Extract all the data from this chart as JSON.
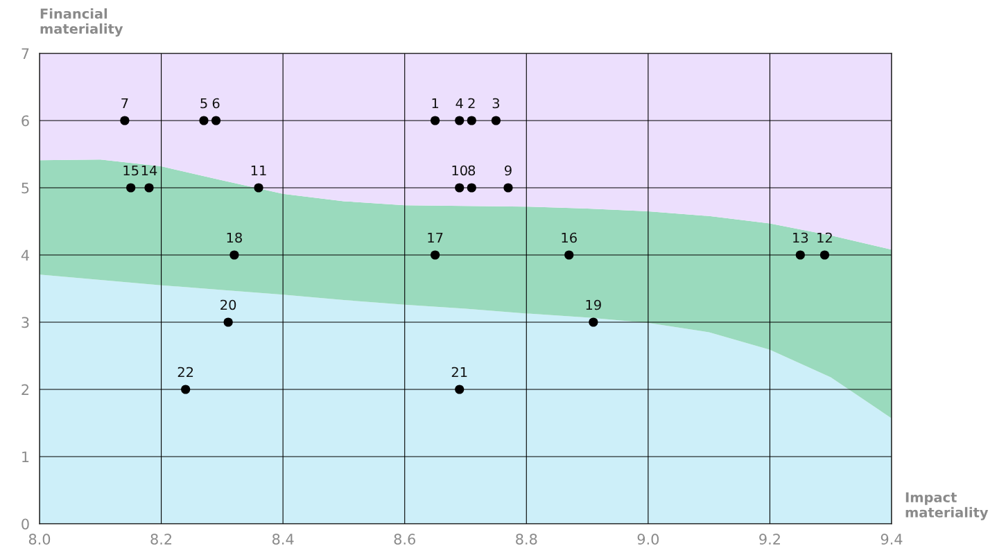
{
  "chart_data": {
    "type": "scatter",
    "xlabel": "Impact materiality",
    "ylabel": "Financial materiality",
    "xlim": [
      8.0,
      9.4
    ],
    "ylim": [
      0,
      7
    ],
    "xticks": [
      {
        "value": 8.0,
        "label": "8.0"
      },
      8.2,
      8.4,
      8.6,
      8.8,
      {
        "value": 9.0,
        "label": "9.0"
      },
      9.2,
      9.4
    ],
    "yticks": [
      0,
      1,
      2,
      3,
      4,
      5,
      6,
      7
    ],
    "grid": true,
    "stacked": true,
    "series": [
      {
        "type": "area",
        "color": "#cdeff9",
        "x": [
          8.0,
          8.1,
          8.2,
          8.3,
          8.4,
          8.5,
          8.6,
          8.7,
          8.8,
          8.9,
          9.0,
          9.1,
          9.2,
          9.3,
          9.4
        ],
        "values": [
          3.71,
          3.63,
          3.55,
          3.48,
          3.41,
          3.33,
          3.26,
          3.2,
          3.13,
          3.07,
          2.99,
          2.85,
          2.59,
          2.18,
          1.57
        ]
      },
      {
        "type": "area",
        "color": "#9adabd",
        "x": [
          8.0,
          8.1,
          8.2,
          8.3,
          8.4,
          8.5,
          8.6,
          8.7,
          8.8,
          8.9,
          9.0,
          9.1,
          9.2,
          9.3,
          9.4
        ],
        "values": [
          1.7,
          1.79,
          1.77,
          1.63,
          1.5,
          1.47,
          1.48,
          1.53,
          1.59,
          1.62,
          1.66,
          1.73,
          1.88,
          2.11,
          2.51
        ]
      },
      {
        "type": "area",
        "color": "#ecdffd",
        "x": [
          8.0,
          8.1,
          8.2,
          8.3,
          8.4,
          8.5,
          8.6,
          8.7,
          8.8,
          8.9,
          9.0,
          9.1,
          9.2,
          9.3,
          9.4
        ],
        "values": [
          1.59,
          1.58,
          1.68,
          1.89,
          2.09,
          2.2,
          2.26,
          2.27,
          2.28,
          2.31,
          2.35,
          2.42,
          2.53,
          2.71,
          2.92
        ]
      },
      {
        "color": "#000000",
        "marker": "circle",
        "x": [
          8.65,
          8.71,
          8.75,
          8.69,
          8.27,
          8.29,
          8.14,
          8.71,
          8.77,
          8.69,
          8.36,
          9.29,
          9.25,
          8.18,
          8.15,
          8.87,
          8.65,
          8.32,
          8.91,
          8.31,
          8.69,
          8.24
        ],
        "values": [
          6,
          6,
          6,
          6,
          6,
          6,
          6,
          5,
          5,
          5,
          5,
          4,
          4,
          5,
          5,
          4,
          4,
          4,
          3,
          3,
          2,
          2
        ]
      }
    ],
    "annotations": [
      {
        "text": "1",
        "x": 8.65,
        "y": 6
      },
      {
        "text": "2",
        "x": 8.71,
        "y": 6
      },
      {
        "text": "3",
        "x": 8.75,
        "y": 6
      },
      {
        "text": "4",
        "x": 8.69,
        "y": 6
      },
      {
        "text": "5",
        "x": 8.27,
        "y": 6
      },
      {
        "text": "6",
        "x": 8.29,
        "y": 6
      },
      {
        "text": "7",
        "x": 8.14,
        "y": 6
      },
      {
        "text": "8",
        "x": 8.71,
        "y": 5
      },
      {
        "text": "9",
        "x": 8.77,
        "y": 5
      },
      {
        "text": "10",
        "x": 8.69,
        "y": 5
      },
      {
        "text": "11",
        "x": 8.36,
        "y": 5
      },
      {
        "text": "12",
        "x": 9.29,
        "y": 4
      },
      {
        "text": "13",
        "x": 9.25,
        "y": 4
      },
      {
        "text": "14",
        "x": 8.18,
        "y": 5
      },
      {
        "text": "15",
        "x": 8.15,
        "y": 5
      },
      {
        "text": "16",
        "x": 8.87,
        "y": 4
      },
      {
        "text": "17",
        "x": 8.65,
        "y": 4
      },
      {
        "text": "18",
        "x": 8.32,
        "y": 4
      },
      {
        "text": "19",
        "x": 8.91,
        "y": 3
      },
      {
        "text": "20",
        "x": 8.31,
        "y": 3
      },
      {
        "text": "21",
        "x": 8.69,
        "y": 2
      },
      {
        "text": "22",
        "x": 8.24,
        "y": 2
      }
    ]
  }
}
